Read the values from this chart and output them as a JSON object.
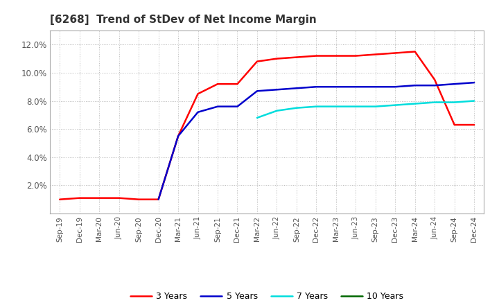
{
  "title": "[6268]  Trend of StDev of Net Income Margin",
  "ylim": [
    0.0,
    0.13
  ],
  "yticks": [
    0.02,
    0.04,
    0.06,
    0.08,
    0.1,
    0.12
  ],
  "ytick_labels": [
    "2.0%",
    "4.0%",
    "6.0%",
    "8.0%",
    "10.0%",
    "12.0%"
  ],
  "background_color": "#ffffff",
  "plot_bg_color": "#ffffff",
  "grid_color": "#bbbbbb",
  "line_colors": {
    "3y": "#ff0000",
    "5y": "#0000cc",
    "7y": "#00dddd",
    "10y": "#006600"
  },
  "line_widths": {
    "3y": 1.8,
    "5y": 1.8,
    "7y": 1.8,
    "10y": 1.8
  },
  "legend_labels": [
    "3 Years",
    "5 Years",
    "7 Years",
    "10 Years"
  ],
  "x_labels": [
    "Sep-19",
    "Dec-19",
    "Mar-20",
    "Jun-20",
    "Sep-20",
    "Dec-20",
    "Mar-21",
    "Jun-21",
    "Sep-21",
    "Dec-21",
    "Mar-22",
    "Jun-22",
    "Sep-22",
    "Dec-22",
    "Mar-23",
    "Jun-23",
    "Sep-23",
    "Dec-23",
    "Mar-24",
    "Jun-24",
    "Sep-24",
    "Dec-24"
  ],
  "series_3y": [
    0.01,
    0.011,
    0.011,
    0.011,
    0.01,
    0.01,
    0.055,
    0.085,
    0.092,
    0.092,
    0.108,
    0.11,
    0.111,
    0.112,
    0.112,
    0.112,
    0.113,
    0.114,
    0.115,
    0.095,
    0.063,
    0.063
  ],
  "series_5y": [
    null,
    null,
    null,
    null,
    null,
    0.01,
    0.055,
    0.072,
    0.076,
    0.076,
    0.087,
    0.088,
    0.089,
    0.09,
    0.09,
    0.09,
    0.09,
    0.09,
    0.091,
    0.091,
    0.092,
    0.093
  ],
  "series_7y": [
    null,
    null,
    null,
    null,
    null,
    null,
    null,
    null,
    null,
    null,
    0.068,
    0.073,
    0.075,
    0.076,
    0.076,
    0.076,
    0.076,
    0.077,
    0.078,
    0.079,
    0.079,
    0.08
  ],
  "series_10y": [
    null,
    null,
    null,
    null,
    null,
    null,
    null,
    null,
    null,
    null,
    null,
    null,
    null,
    null,
    null,
    null,
    null,
    null,
    null,
    null,
    null,
    null
  ]
}
